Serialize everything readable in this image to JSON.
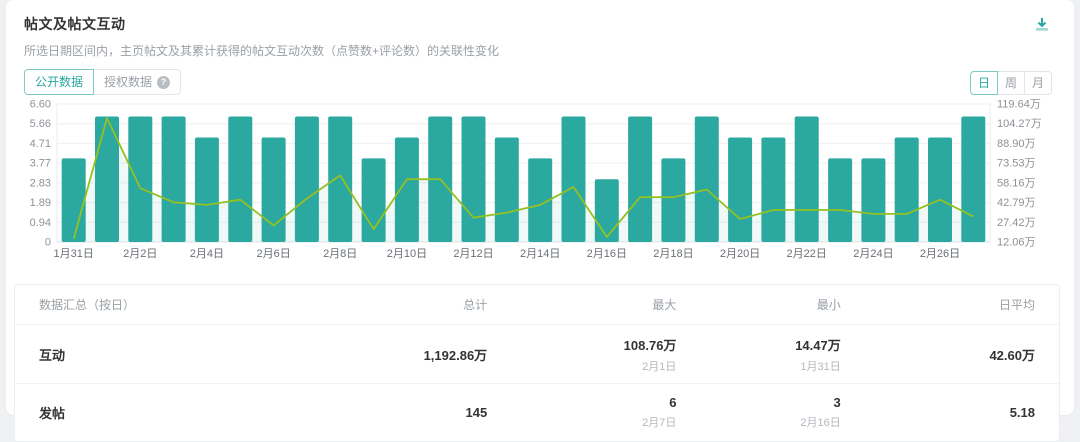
{
  "header": {
    "title": "帖文及帖文互动",
    "subtitle": "所选日期区间内，主页帖文及其累计获得的帖文互动次数（点赞数+评论数）的关联性变化"
  },
  "source_toggle": {
    "options": [
      "公开数据",
      "授权数据"
    ],
    "selected": "公开数据",
    "help_glyph": "?"
  },
  "granularity_toggle": {
    "options": [
      "日",
      "周",
      "月"
    ],
    "selected": "日"
  },
  "colors": {
    "bar": "#2ba8a0",
    "line": "#94c122",
    "accent": "#2aa7a0",
    "grid": "#efefef",
    "axis_text": "#8c9196"
  },
  "chart_data": {
    "type": "bar",
    "combo": "bar+line dual axis",
    "title": "帖文及帖文互动",
    "categories": [
      "1月31日",
      "2月1日",
      "2月2日",
      "2月3日",
      "2月4日",
      "2月5日",
      "2月6日",
      "2月7日",
      "2月8日",
      "2月9日",
      "2月10日",
      "2月11日",
      "2月12日",
      "2月13日",
      "2月14日",
      "2月15日",
      "2月16日",
      "2月17日",
      "2月18日",
      "2月19日",
      "2月20日",
      "2月21日",
      "2月22日",
      "2月23日",
      "2月24日",
      "2月25日",
      "2月26日",
      "2月27日"
    ],
    "x_label_every": 2,
    "series": [
      {
        "name": "发帖",
        "type": "bar",
        "axis": "left",
        "values": [
          4,
          6,
          6,
          6,
          5,
          6,
          5,
          6,
          6,
          4,
          5,
          6,
          6,
          5,
          4,
          6,
          3,
          6,
          4,
          6,
          5,
          5,
          6,
          4,
          4,
          5,
          5,
          6
        ]
      },
      {
        "name": "互动(万)",
        "type": "line",
        "axis": "right",
        "values": [
          14.47,
          108.76,
          54,
          43,
          41,
          45,
          25,
          46,
          64,
          22,
          61,
          61,
          31,
          35,
          41,
          55,
          16,
          47,
          47,
          53,
          30,
          37,
          37,
          37,
          34,
          34,
          45,
          32
        ]
      }
    ],
    "left_axis": {
      "min": 0,
      "max": 6.6,
      "tick_labels": [
        "0",
        "0.94",
        "1.89",
        "2.83",
        "3.77",
        "4.71",
        "5.66",
        "6.60"
      ]
    },
    "right_axis": {
      "min": 12.06,
      "max": 119.64,
      "unit": "万",
      "tick_labels": [
        "12.06万",
        "27.42万",
        "42.79万",
        "58.16万",
        "73.53万",
        "88.90万",
        "104.27万",
        "119.64万"
      ]
    },
    "grid": true,
    "legend": "none"
  },
  "summary_table": {
    "headers": [
      "数据汇总（按日）",
      "总计",
      "最大",
      "最小",
      "日平均"
    ],
    "rows": [
      {
        "metric": "互动",
        "total": "1,192.86万",
        "max": "108.76万",
        "max_date": "2月1日",
        "min": "14.47万",
        "min_date": "1月31日",
        "daily_avg": "42.60万"
      },
      {
        "metric": "发帖",
        "total": "145",
        "max": "6",
        "max_date": "2月7日",
        "min": "3",
        "min_date": "2月16日",
        "daily_avg": "5.18"
      }
    ]
  }
}
